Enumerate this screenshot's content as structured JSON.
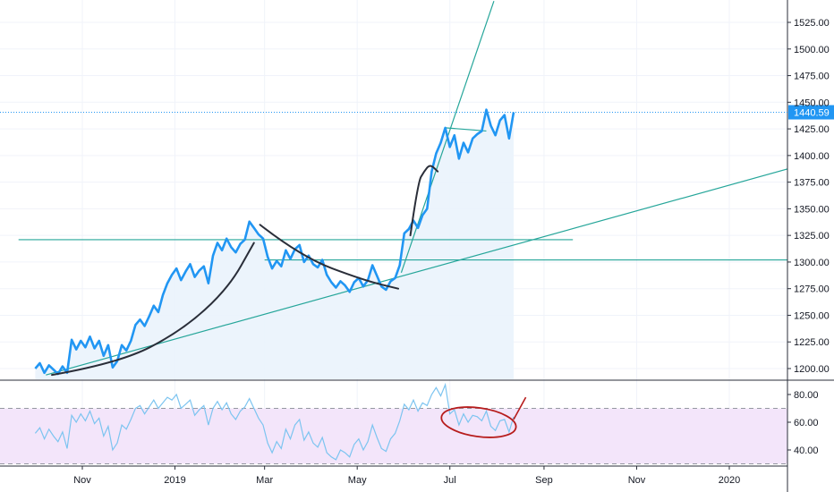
{
  "chart_data": {
    "type": "line",
    "title": "",
    "xlabel": "",
    "ylabel": "",
    "colors": {
      "price_line": "#2196f3",
      "price_fill": "#eaf3fc",
      "trend_line": "#26a69a",
      "rsi_line": "#7cc4f0",
      "rsi_band": "#f3e5fa",
      "rsi_level": "#9598a1",
      "drawing": "#2a2e39",
      "annotation": "#b71c1c",
      "last_price_tag": "#2196f3"
    },
    "x_axis": {
      "ticks": [
        {
          "date": "2018-11-01",
          "label": "Nov"
        },
        {
          "date": "2019-01-01",
          "label": "2019"
        },
        {
          "date": "2019-03-01",
          "label": "Mar"
        },
        {
          "date": "2019-05-01",
          "label": "May"
        },
        {
          "date": "2019-07-01",
          "label": "Jul"
        },
        {
          "date": "2019-09-01",
          "label": "Sep"
        },
        {
          "date": "2019-11-01",
          "label": "Nov"
        },
        {
          "date": "2020-01-01",
          "label": "2020"
        }
      ]
    },
    "price_axis": {
      "ylim": [
        1192,
        1545
      ],
      "ticks": [
        {
          "value": 1200,
          "label": "1200.00"
        },
        {
          "value": 1225,
          "label": "1225.00"
        },
        {
          "value": 1250,
          "label": "1250.00"
        },
        {
          "value": 1275,
          "label": "1275.00"
        },
        {
          "value": 1300,
          "label": "1300.00"
        },
        {
          "value": 1325,
          "label": "1325.00"
        },
        {
          "value": 1350,
          "label": "1350.00"
        },
        {
          "value": 1375,
          "label": "1375.00"
        },
        {
          "value": 1400,
          "label": "1400.00"
        },
        {
          "value": 1425,
          "label": "1425.00"
        },
        {
          "value": 1450,
          "label": "1450.00"
        },
        {
          "value": 1475,
          "label": "1475.00"
        },
        {
          "value": 1500,
          "label": "1500.00"
        },
        {
          "value": 1525,
          "label": "1525.00"
        }
      ],
      "last_price": {
        "value": 1440.59,
        "label": "1440.59"
      }
    },
    "rsi_axis": {
      "ylim": [
        25,
        90
      ],
      "ticks": [
        {
          "value": 40,
          "label": "40.00"
        },
        {
          "value": 60,
          "label": "60.00"
        },
        {
          "value": 80,
          "label": "80.00"
        }
      ],
      "band": [
        30,
        70
      ]
    },
    "price_series": [
      [
        "2018-10-01",
        1200
      ],
      [
        "2018-10-04",
        1205
      ],
      [
        "2018-10-07",
        1196
      ],
      [
        "2018-10-10",
        1203
      ],
      [
        "2018-10-13",
        1199
      ],
      [
        "2018-10-16",
        1195
      ],
      [
        "2018-10-19",
        1202
      ],
      [
        "2018-10-22",
        1196
      ],
      [
        "2018-10-25",
        1227
      ],
      [
        "2018-10-28",
        1218
      ],
      [
        "2018-10-31",
        1226
      ],
      [
        "2018-11-03",
        1220
      ],
      [
        "2018-11-06",
        1230
      ],
      [
        "2018-11-09",
        1219
      ],
      [
        "2018-11-12",
        1226
      ],
      [
        "2018-11-15",
        1212
      ],
      [
        "2018-11-18",
        1222
      ],
      [
        "2018-11-21",
        1201
      ],
      [
        "2018-11-24",
        1207
      ],
      [
        "2018-11-27",
        1222
      ],
      [
        "2018-11-30",
        1217
      ],
      [
        "2018-12-03",
        1226
      ],
      [
        "2018-12-06",
        1241
      ],
      [
        "2018-12-09",
        1246
      ],
      [
        "2018-12-12",
        1240
      ],
      [
        "2018-12-15",
        1249
      ],
      [
        "2018-12-18",
        1259
      ],
      [
        "2018-12-21",
        1253
      ],
      [
        "2018-12-24",
        1269
      ],
      [
        "2018-12-27",
        1280
      ],
      [
        "2018-12-30",
        1288
      ],
      [
        "2019-01-02",
        1294
      ],
      [
        "2019-01-05",
        1283
      ],
      [
        "2019-01-08",
        1291
      ],
      [
        "2019-01-11",
        1298
      ],
      [
        "2019-01-14",
        1286
      ],
      [
        "2019-01-17",
        1292
      ],
      [
        "2019-01-20",
        1296
      ],
      [
        "2019-01-23",
        1280
      ],
      [
        "2019-01-26",
        1306
      ],
      [
        "2019-01-29",
        1318
      ],
      [
        "2019-02-01",
        1311
      ],
      [
        "2019-02-04",
        1322
      ],
      [
        "2019-02-07",
        1314
      ],
      [
        "2019-02-10",
        1309
      ],
      [
        "2019-02-13",
        1317
      ],
      [
        "2019-02-16",
        1321
      ],
      [
        "2019-02-19",
        1338
      ],
      [
        "2019-02-22",
        1332
      ],
      [
        "2019-02-25",
        1326
      ],
      [
        "2019-02-28",
        1322
      ],
      [
        "2019-03-03",
        1305
      ],
      [
        "2019-03-06",
        1294
      ],
      [
        "2019-03-09",
        1301
      ],
      [
        "2019-03-12",
        1296
      ],
      [
        "2019-03-15",
        1311
      ],
      [
        "2019-03-18",
        1303
      ],
      [
        "2019-03-21",
        1312
      ],
      [
        "2019-03-24",
        1316
      ],
      [
        "2019-03-27",
        1300
      ],
      [
        "2019-03-30",
        1306
      ],
      [
        "2019-04-02",
        1298
      ],
      [
        "2019-04-05",
        1295
      ],
      [
        "2019-04-08",
        1302
      ],
      [
        "2019-04-11",
        1288
      ],
      [
        "2019-04-14",
        1281
      ],
      [
        "2019-04-17",
        1276
      ],
      [
        "2019-04-20",
        1282
      ],
      [
        "2019-04-23",
        1278
      ],
      [
        "2019-04-26",
        1272
      ],
      [
        "2019-04-29",
        1281
      ],
      [
        "2019-05-02",
        1285
      ],
      [
        "2019-05-05",
        1277
      ],
      [
        "2019-05-08",
        1283
      ],
      [
        "2019-05-11",
        1297
      ],
      [
        "2019-05-14",
        1287
      ],
      [
        "2019-05-17",
        1277
      ],
      [
        "2019-05-20",
        1274
      ],
      [
        "2019-05-23",
        1282
      ],
      [
        "2019-05-26",
        1285
      ],
      [
        "2019-05-29",
        1297
      ],
      [
        "2019-06-01",
        1327
      ],
      [
        "2019-06-04",
        1331
      ],
      [
        "2019-06-07",
        1339
      ],
      [
        "2019-06-10",
        1332
      ],
      [
        "2019-06-13",
        1344
      ],
      [
        "2019-06-16",
        1350
      ],
      [
        "2019-06-19",
        1385
      ],
      [
        "2019-06-22",
        1402
      ],
      [
        "2019-06-25",
        1412
      ],
      [
        "2019-06-28",
        1426
      ],
      [
        "2019-07-01",
        1408
      ],
      [
        "2019-07-04",
        1419
      ],
      [
        "2019-07-07",
        1397
      ],
      [
        "2019-07-10",
        1412
      ],
      [
        "2019-07-13",
        1403
      ],
      [
        "2019-07-16",
        1416
      ],
      [
        "2019-07-19",
        1420
      ],
      [
        "2019-07-22",
        1423
      ],
      [
        "2019-07-25",
        1443
      ],
      [
        "2019-07-28",
        1428
      ],
      [
        "2019-07-31",
        1419
      ],
      [
        "2019-08-03",
        1433
      ],
      [
        "2019-08-06",
        1438
      ],
      [
        "2019-08-09",
        1416
      ],
      [
        "2019-08-12",
        1440.59
      ]
    ],
    "rsi_series": [
      [
        "2018-10-01",
        52
      ],
      [
        "2018-10-04",
        56
      ],
      [
        "2018-10-07",
        48
      ],
      [
        "2018-10-10",
        55
      ],
      [
        "2018-10-13",
        50
      ],
      [
        "2018-10-16",
        46
      ],
      [
        "2018-10-19",
        53
      ],
      [
        "2018-10-22",
        41
      ],
      [
        "2018-10-25",
        65
      ],
      [
        "2018-10-28",
        60
      ],
      [
        "2018-10-31",
        66
      ],
      [
        "2018-11-03",
        61
      ],
      [
        "2018-11-06",
        68
      ],
      [
        "2018-11-09",
        59
      ],
      [
        "2018-11-12",
        63
      ],
      [
        "2018-11-15",
        50
      ],
      [
        "2018-11-18",
        57
      ],
      [
        "2018-11-21",
        40
      ],
      [
        "2018-11-24",
        45
      ],
      [
        "2018-11-27",
        58
      ],
      [
        "2018-11-30",
        55
      ],
      [
        "2018-12-03",
        62
      ],
      [
        "2018-12-06",
        70
      ],
      [
        "2018-12-09",
        72
      ],
      [
        "2018-12-12",
        66
      ],
      [
        "2018-12-15",
        71
      ],
      [
        "2018-12-18",
        76
      ],
      [
        "2018-12-21",
        70
      ],
      [
        "2018-12-24",
        74
      ],
      [
        "2018-12-27",
        78
      ],
      [
        "2018-12-30",
        76
      ],
      [
        "2019-01-02",
        80
      ],
      [
        "2019-01-05",
        70
      ],
      [
        "2019-01-08",
        73
      ],
      [
        "2019-01-11",
        76
      ],
      [
        "2019-01-14",
        65
      ],
      [
        "2019-01-17",
        69
      ],
      [
        "2019-01-20",
        72
      ],
      [
        "2019-01-23",
        58
      ],
      [
        "2019-01-26",
        70
      ],
      [
        "2019-01-29",
        75
      ],
      [
        "2019-02-01",
        69
      ],
      [
        "2019-02-04",
        74
      ],
      [
        "2019-02-07",
        66
      ],
      [
        "2019-02-10",
        62
      ],
      [
        "2019-02-13",
        68
      ],
      [
        "2019-02-16",
        71
      ],
      [
        "2019-02-19",
        77
      ],
      [
        "2019-02-22",
        70
      ],
      [
        "2019-02-25",
        63
      ],
      [
        "2019-02-28",
        58
      ],
      [
        "2019-03-03",
        45
      ],
      [
        "2019-03-06",
        38
      ],
      [
        "2019-03-09",
        46
      ],
      [
        "2019-03-12",
        41
      ],
      [
        "2019-03-15",
        55
      ],
      [
        "2019-03-18",
        48
      ],
      [
        "2019-03-21",
        58
      ],
      [
        "2019-03-24",
        62
      ],
      [
        "2019-03-27",
        47
      ],
      [
        "2019-03-30",
        53
      ],
      [
        "2019-04-02",
        45
      ],
      [
        "2019-04-05",
        42
      ],
      [
        "2019-04-08",
        49
      ],
      [
        "2019-04-11",
        38
      ],
      [
        "2019-04-14",
        35
      ],
      [
        "2019-04-17",
        33
      ],
      [
        "2019-04-20",
        40
      ],
      [
        "2019-04-23",
        38
      ],
      [
        "2019-04-26",
        35
      ],
      [
        "2019-04-29",
        44
      ],
      [
        "2019-05-02",
        48
      ],
      [
        "2019-05-05",
        40
      ],
      [
        "2019-05-08",
        46
      ],
      [
        "2019-05-11",
        58
      ],
      [
        "2019-05-14",
        49
      ],
      [
        "2019-05-17",
        41
      ],
      [
        "2019-05-20",
        39
      ],
      [
        "2019-05-23",
        48
      ],
      [
        "2019-05-26",
        52
      ],
      [
        "2019-05-29",
        61
      ],
      [
        "2019-06-01",
        73
      ],
      [
        "2019-06-04",
        69
      ],
      [
        "2019-06-07",
        76
      ],
      [
        "2019-06-10",
        68
      ],
      [
        "2019-06-13",
        74
      ],
      [
        "2019-06-16",
        72
      ],
      [
        "2019-06-19",
        80
      ],
      [
        "2019-06-22",
        85
      ],
      [
        "2019-06-25",
        79
      ],
      [
        "2019-06-28",
        87
      ],
      [
        "2019-07-01",
        66
      ],
      [
        "2019-07-04",
        69
      ],
      [
        "2019-07-07",
        58
      ],
      [
        "2019-07-10",
        66
      ],
      [
        "2019-07-13",
        60
      ],
      [
        "2019-07-16",
        65
      ],
      [
        "2019-07-19",
        64
      ],
      [
        "2019-07-22",
        61
      ],
      [
        "2019-07-25",
        68
      ],
      [
        "2019-07-28",
        57
      ],
      [
        "2019-07-31",
        54
      ],
      [
        "2019-08-03",
        61
      ],
      [
        "2019-08-06",
        62
      ],
      [
        "2019-08-09",
        53
      ],
      [
        "2019-08-12",
        64
      ]
    ],
    "trend_lines": [
      {
        "x1": "2018-10-08",
        "y1": 1194,
        "x2": "2020-02-15",
        "y2": 1390
      },
      {
        "x1": "2019-05-30",
        "y1": 1290,
        "x2": "2019-07-30",
        "y2": 1545
      },
      {
        "x1": "2018-09-20",
        "y1": 1321,
        "x2": "2019-09-20",
        "y2": 1321
      },
      {
        "x1": "2019-03-01",
        "y1": 1302,
        "x2": "2020-02-20",
        "y2": 1302
      },
      {
        "x1": "2019-06-28",
        "y1": 1426,
        "x2": "2019-07-25",
        "y2": 1423
      }
    ],
    "curve_drawings": [
      [
        [
          "2018-10-12",
          1194
        ],
        [
          "2018-11-25",
          1205
        ],
        [
          "2019-01-05",
          1235
        ],
        [
          "2019-02-05",
          1275
        ],
        [
          "2019-02-22",
          1318
        ]
      ],
      [
        [
          "2019-02-26",
          1335
        ],
        [
          "2019-03-25",
          1305
        ],
        [
          "2019-05-05",
          1283
        ],
        [
          "2019-05-28",
          1275
        ]
      ],
      [
        [
          "2019-06-05",
          1325
        ],
        [
          "2019-06-10",
          1375
        ],
        [
          "2019-06-14",
          1385
        ],
        [
          "2019-06-18",
          1392
        ],
        [
          "2019-06-23",
          1385
        ]
      ]
    ]
  }
}
